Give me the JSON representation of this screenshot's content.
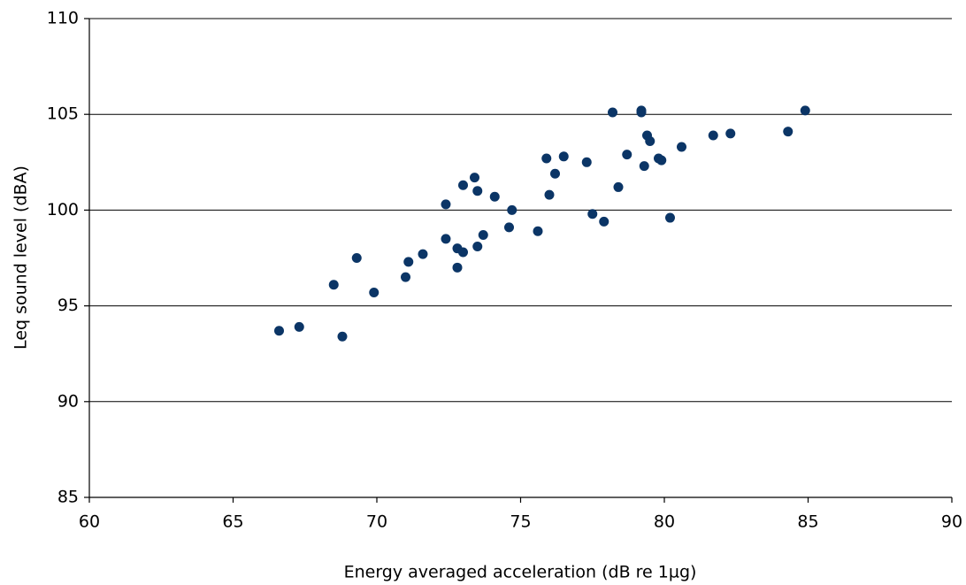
{
  "chart_data": {
    "type": "scatter",
    "x_label": "Energy averaged acceleration (dB re 1µg)",
    "y_label": "Leq sound level (dBA)",
    "color": "#0b3566",
    "grid": true,
    "xlim": [
      60,
      90
    ],
    "xticks": [
      60,
      65,
      70,
      75,
      80,
      85,
      90
    ],
    "ylim": [
      85,
      110
    ],
    "yticks": [
      85,
      90,
      95,
      100,
      105,
      110
    ],
    "x": [
      66.6,
      67.3,
      68.5,
      68.8,
      69.3,
      69.9,
      71.0,
      71.1,
      71.6,
      72.4,
      72.4,
      72.8,
      72.8,
      73.0,
      73.0,
      73.4,
      73.5,
      73.5,
      73.7,
      74.1,
      74.6,
      74.7,
      75.6,
      75.9,
      76.0,
      76.2,
      76.5,
      77.3,
      77.5,
      77.9,
      78.2,
      78.4,
      78.7,
      79.2,
      79.2,
      79.3,
      79.4,
      79.5,
      79.8,
      79.9,
      80.2,
      80.6,
      81.7,
      82.3,
      84.3,
      84.9
    ],
    "values": [
      93.7,
      93.9,
      96.1,
      93.4,
      97.5,
      95.7,
      96.5,
      97.3,
      97.7,
      100.3,
      98.5,
      97.0,
      98.0,
      97.8,
      101.3,
      101.7,
      101.0,
      98.1,
      98.7,
      100.7,
      99.1,
      100.0,
      98.9,
      102.7,
      100.8,
      101.9,
      102.8,
      102.5,
      99.8,
      99.4,
      105.1,
      101.2,
      102.9,
      105.1,
      105.2,
      102.3,
      103.9,
      103.6,
      102.7,
      102.6,
      99.6,
      103.3,
      103.9,
      104.0,
      104.1,
      105.2
    ]
  }
}
